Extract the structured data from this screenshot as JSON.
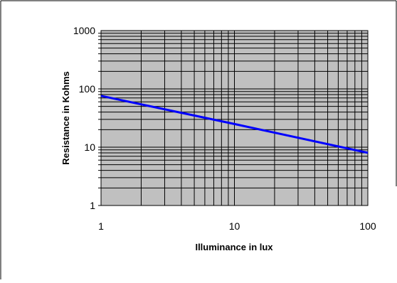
{
  "chart_data": {
    "type": "line",
    "title": "",
    "xlabel": "Illuminance in lux",
    "ylabel": "Resistance in Kohms",
    "x_scale": "log",
    "y_scale": "log",
    "xlim": [
      1,
      100
    ],
    "ylim": [
      1,
      1000
    ],
    "x_ticks": [
      "1",
      "10",
      "100"
    ],
    "y_ticks": [
      "1",
      "10",
      "100",
      "1000"
    ],
    "grid": true,
    "legend": "none",
    "series": [
      {
        "x": [
          1,
          10,
          100
        ],
        "y": [
          76,
          25,
          8
        ]
      }
    ]
  },
  "colors": {
    "plot_background": "#c0c0c0",
    "grid": "#000000",
    "line": "#0000ff",
    "frame": "#000000"
  }
}
